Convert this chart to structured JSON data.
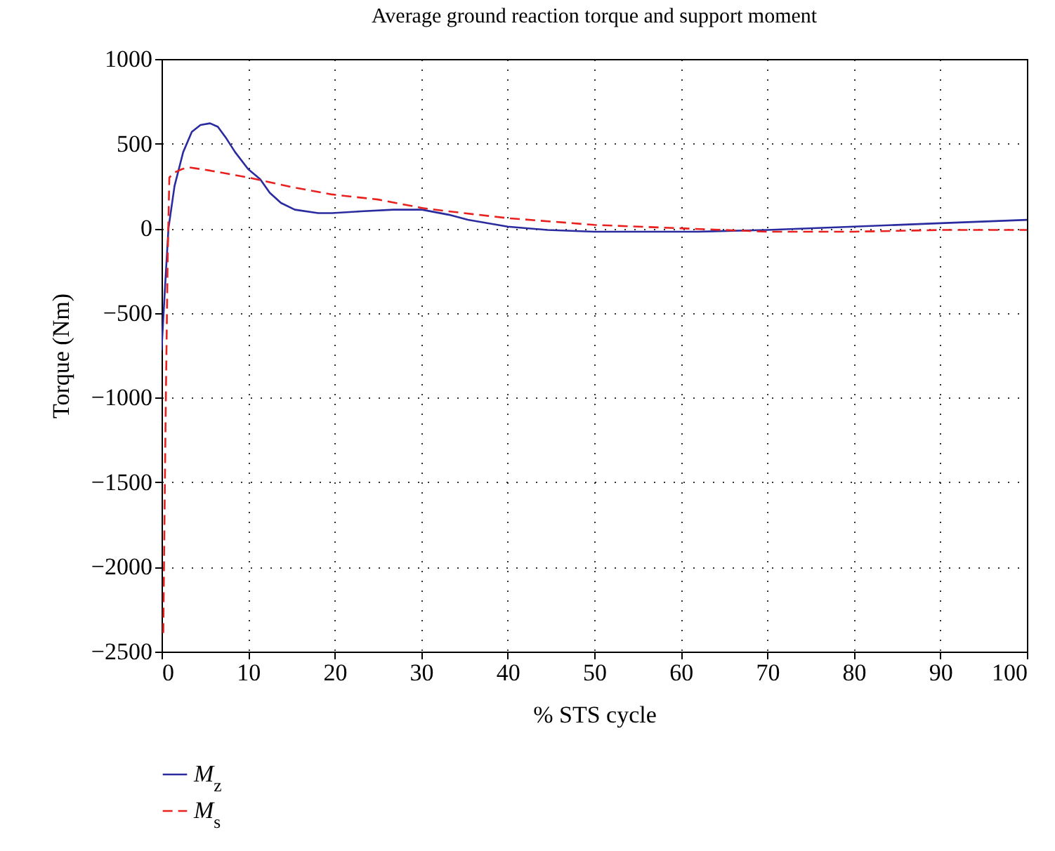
{
  "chart_data": {
    "type": "line",
    "title": "Average ground reaction torque and support moment",
    "xlabel": "% STS cycle",
    "ylabel": "Torque (Nm)",
    "xlim": [
      0,
      100
    ],
    "ylim": [
      -2500,
      1000
    ],
    "xticks": [
      0,
      10,
      20,
      30,
      40,
      50,
      60,
      70,
      80,
      90,
      100
    ],
    "yticks": [
      -2500,
      -2000,
      -1500,
      -1000,
      -500,
      0,
      500,
      1000
    ],
    "grid": true,
    "legend": "bottom left",
    "series": [
      {
        "name": "M$_{z}$",
        "color": "#2b2ba0",
        "line_style": "solid",
        "x": [
          0,
          0.4,
          0.8,
          1.5,
          2.5,
          3.5,
          4.5,
          5.6,
          6.5,
          7.5,
          8.5,
          10,
          11.4,
          12.5,
          13.8,
          15.4,
          18.1,
          19.7,
          23,
          26.8,
          30.1,
          33.2,
          35.4,
          40,
          44.6,
          50,
          56,
          62,
          70,
          80,
          90,
          100
        ],
        "values": [
          -720,
          -350,
          0,
          250,
          450,
          570,
          610,
          620,
          600,
          530,
          450,
          350,
          290,
          210,
          150,
          110,
          90,
          90,
          100,
          110,
          110,
          80,
          50,
          10,
          -10,
          -20,
          -20,
          -20,
          -10,
          10,
          30,
          50
        ]
      },
      {
        "name": "M$_{s}$",
        "color": "#e8201e",
        "line_style": "dashed",
        "x": [
          0.2,
          0.45,
          0.7,
          0.9,
          1.5,
          2.4,
          3.2,
          5.7,
          10,
          15.4,
          19.7,
          25,
          30.1,
          33.2,
          40,
          50,
          60,
          70,
          80,
          90,
          100
        ],
        "values": [
          -2390,
          -1200,
          -200,
          300,
          330,
          350,
          360,
          340,
          300,
          240,
          200,
          170,
          120,
          100,
          60,
          20,
          0,
          -20,
          -20,
          -10,
          -10
        ]
      }
    ]
  }
}
